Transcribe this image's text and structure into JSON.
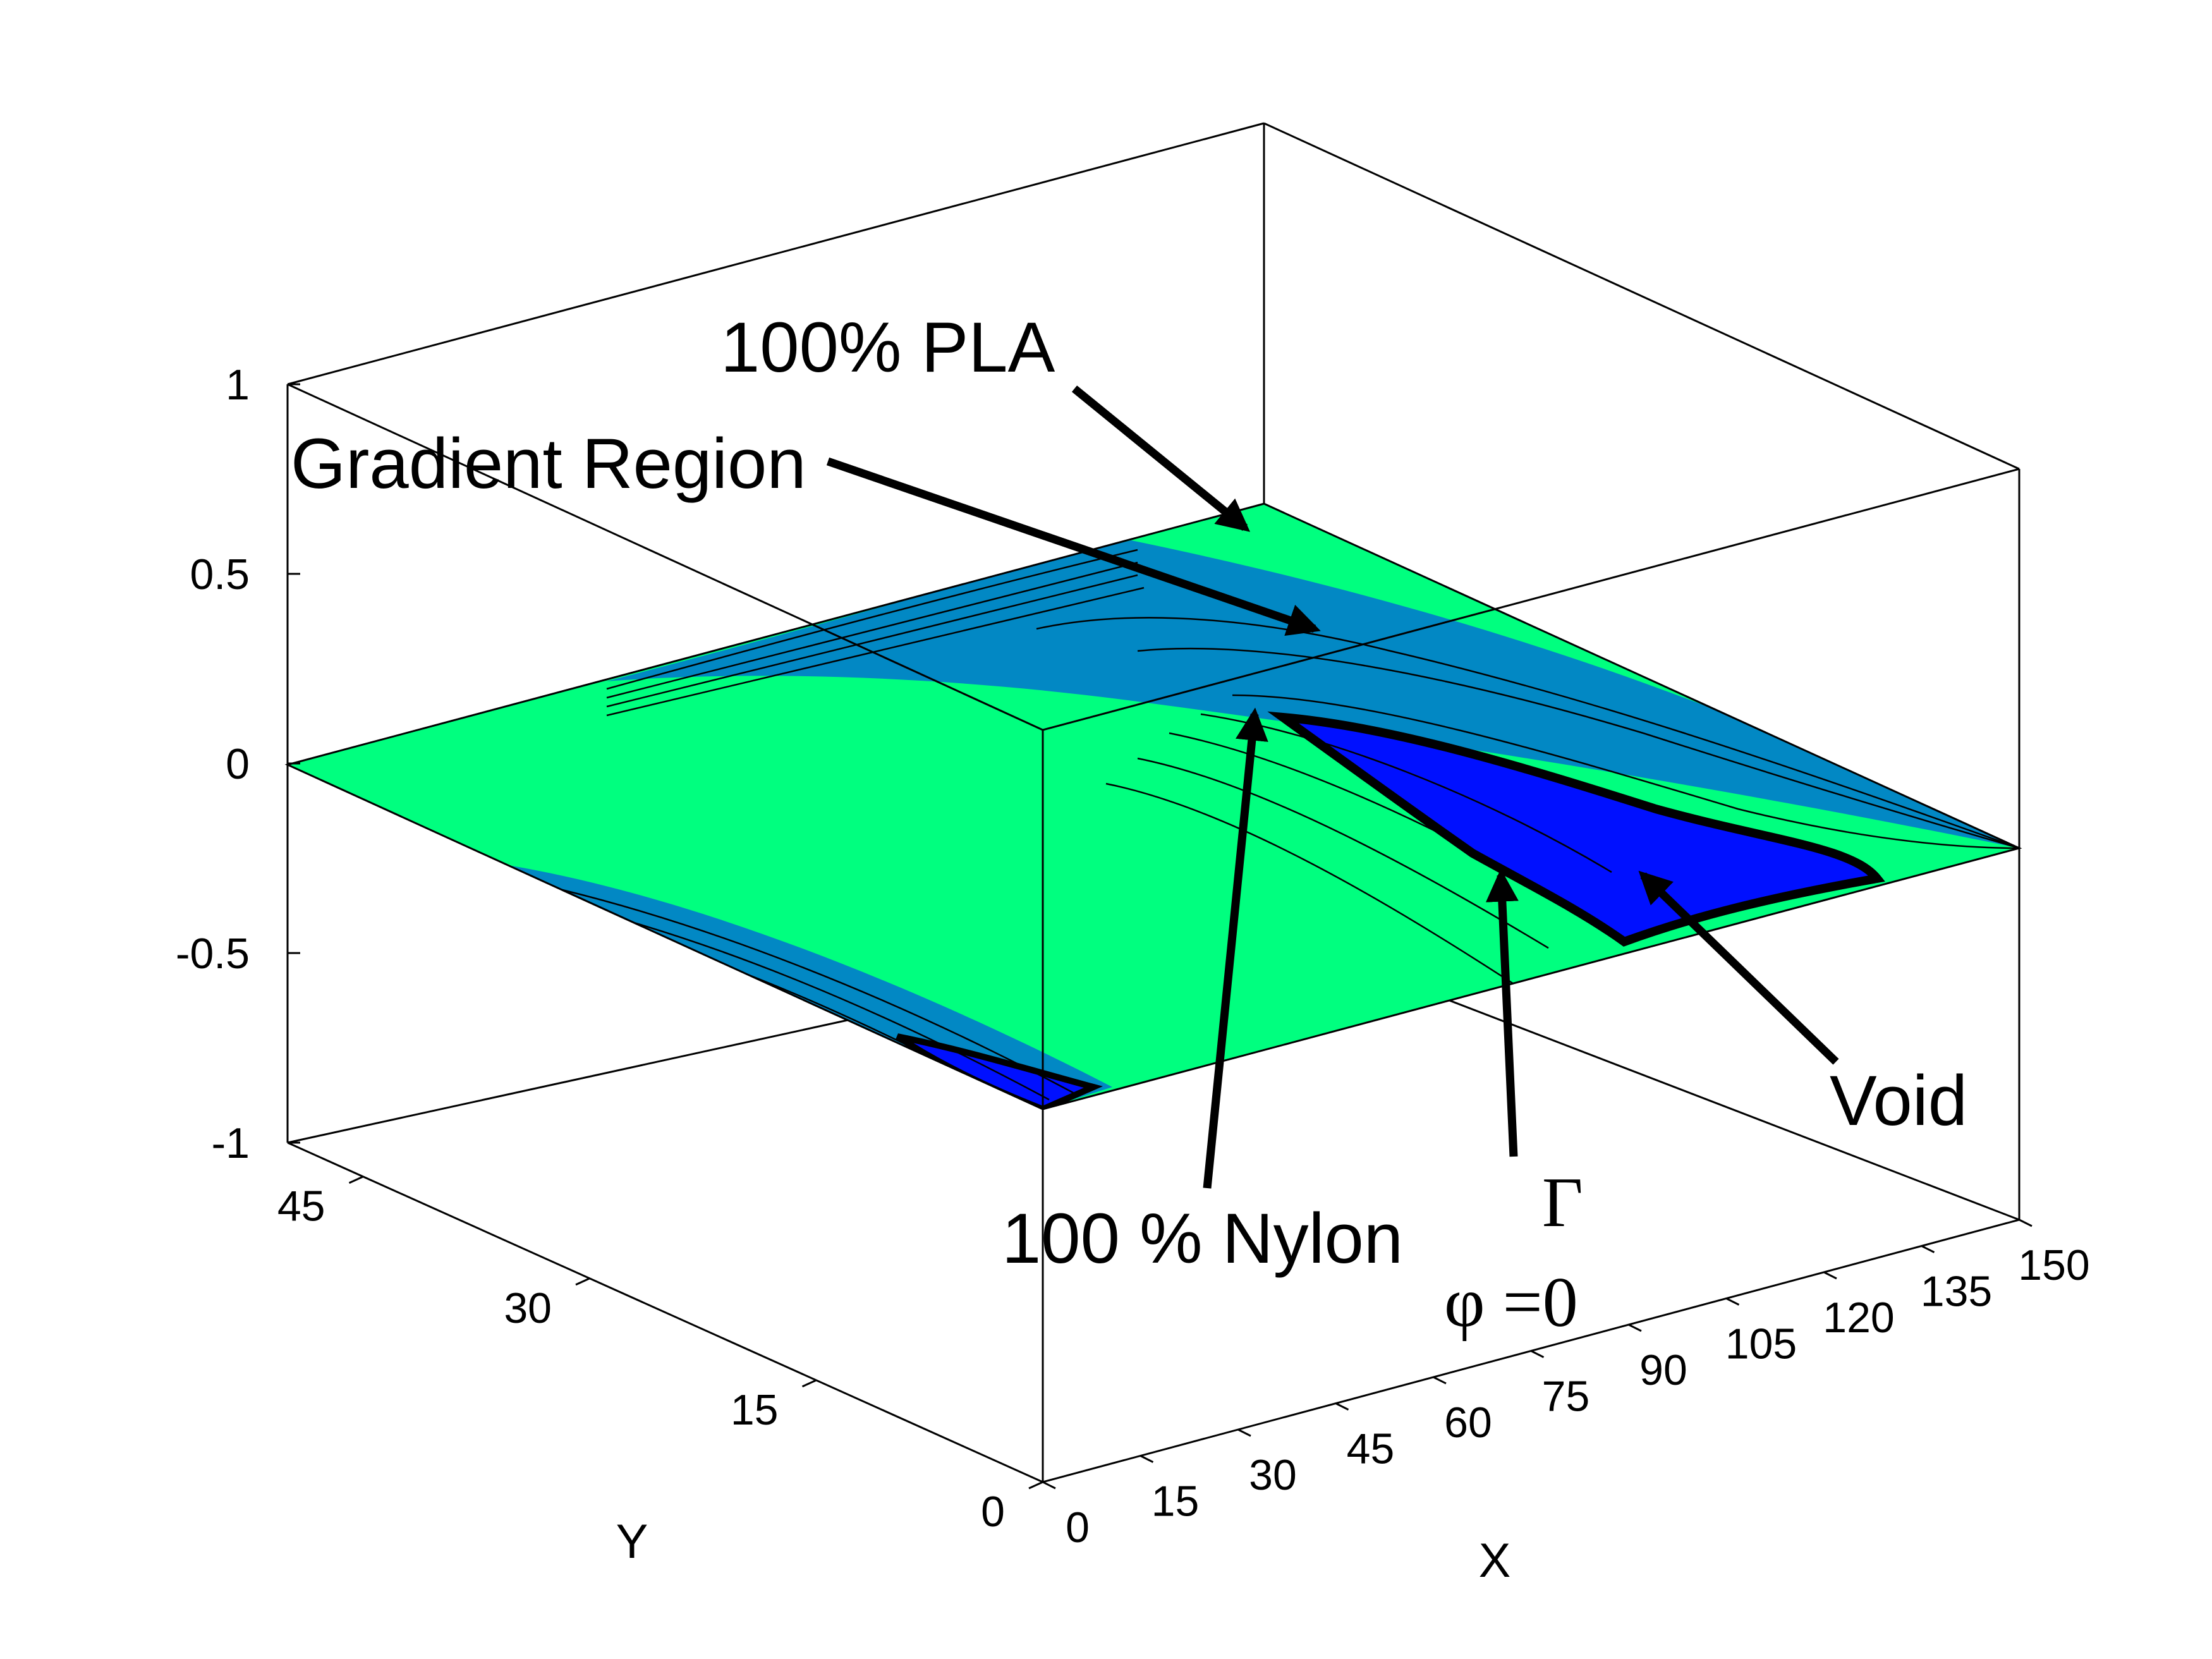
{
  "chart_data": {
    "type": "surface-contour",
    "xlabel": "X",
    "ylabel": "Y",
    "xticks": [
      0,
      15,
      30,
      45,
      60,
      75,
      90,
      105,
      120,
      135,
      150
    ],
    "yticks": [
      0,
      15,
      30,
      45
    ],
    "zticks": [
      "-1",
      "-0.5",
      "0",
      "0.5",
      "1"
    ],
    "xlim": [
      0,
      150
    ],
    "ylim": [
      0,
      50
    ],
    "zlim": [
      -1,
      1
    ],
    "grid": false,
    "colors": {
      "pla": "#00ff7f",
      "gradient": "#0288c4",
      "void": "#0010ff",
      "edge": "#000000"
    },
    "annotations": [
      {
        "id": "pla",
        "text": "100% PLA"
      },
      {
        "id": "gradient",
        "text": "Gradient Region"
      },
      {
        "id": "nylon",
        "text": "100 % Nylon"
      },
      {
        "id": "gamma",
        "text": "Γ"
      },
      {
        "id": "phi",
        "text": "φ =0"
      },
      {
        "id": "void",
        "text": "Void"
      }
    ]
  }
}
